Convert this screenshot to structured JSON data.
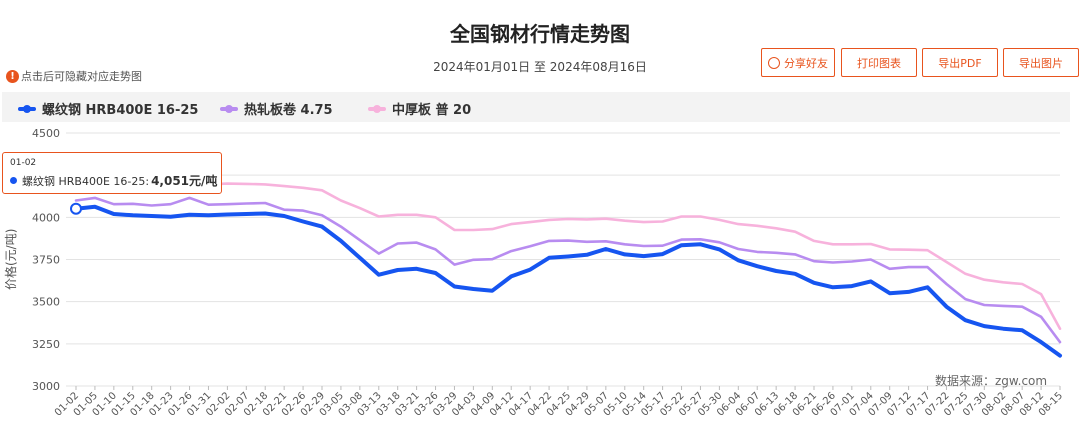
{
  "header": {
    "title": "全国钢材行情走势图",
    "date_range": "2024年01月01日 至 2024年08月16日",
    "hint": "点击后可隐藏对应走势图"
  },
  "toolbar": {
    "share_label": "分享好友",
    "print_label": "打印图表",
    "pdf_label": "导出PDF",
    "image_label": "导出图片"
  },
  "source_note": "数据来源：zgw.com",
  "tooltip": {
    "date": "01-02",
    "series_label": "螺纹钢 HRB400E 16-25:",
    "value_text": "4,051元/吨"
  },
  "colors": {
    "accent": "#e8541e",
    "series_rebar": "#1655f0",
    "series_hotrolled": "#b88cf0",
    "series_plate": "#f7b2dc",
    "grid": "#e3e3e3"
  },
  "chart_data": {
    "type": "line",
    "title": "全国钢材行情走势图",
    "ylabel": "价格(元/吨)",
    "xlabel": "",
    "ylim": [
      3000,
      4500
    ],
    "yticks": [
      3000,
      3250,
      3500,
      3750,
      4000,
      4250,
      4500
    ],
    "grid": true,
    "legend_position": "top-left",
    "x_tick_labels": [
      "01-02",
      "01-05",
      "01-10",
      "01-15",
      "01-18",
      "01-23",
      "01-26",
      "01-31",
      "02-02",
      "02-07",
      "02-18",
      "02-21",
      "02-26",
      "02-29",
      "03-05",
      "03-08",
      "03-13",
      "03-18",
      "03-21",
      "03-26",
      "03-29",
      "04-03",
      "04-09",
      "04-12",
      "04-17",
      "04-22",
      "04-25",
      "04-29",
      "05-07",
      "05-10",
      "05-14",
      "05-17",
      "05-22",
      "05-27",
      "05-30",
      "06-04",
      "06-07",
      "06-13",
      "06-18",
      "06-21",
      "06-26",
      "07-01",
      "07-04",
      "07-09",
      "07-12",
      "07-17",
      "07-22",
      "07-25",
      "07-30",
      "08-02",
      "08-07",
      "08-12",
      "08-15"
    ],
    "series": [
      {
        "name": "螺纹钢 HRB400E 16-25",
        "values": [
          4051,
          4063,
          4020,
          4012,
          4008,
          4003,
          4015,
          4012,
          4017,
          4020,
          4023,
          4008,
          3975,
          3945,
          3860,
          3760,
          3660,
          3688,
          3695,
          3670,
          3590,
          3575,
          3565,
          3650,
          3690,
          3760,
          3768,
          3778,
          3812,
          3780,
          3770,
          3782,
          3835,
          3840,
          3810,
          3745,
          3710,
          3682,
          3665,
          3612,
          3585,
          3592,
          3620,
          3550,
          3558,
          3585,
          3470,
          3390,
          3355,
          3340,
          3330,
          3260,
          3180
        ]
      },
      {
        "name": "热轧板卷 4.75",
        "values": [
          4100,
          4115,
          4078,
          4080,
          4070,
          4078,
          4115,
          4075,
          4078,
          4082,
          4085,
          4045,
          4040,
          4012,
          3945,
          3865,
          3785,
          3845,
          3850,
          3810,
          3720,
          3748,
          3752,
          3800,
          3828,
          3860,
          3862,
          3855,
          3858,
          3840,
          3830,
          3832,
          3868,
          3870,
          3852,
          3812,
          3795,
          3790,
          3780,
          3740,
          3732,
          3738,
          3750,
          3695,
          3705,
          3705,
          3605,
          3515,
          3480,
          3475,
          3470,
          3410,
          3260
        ]
      },
      {
        "name": "中厚板 普 20",
        "values": [
          4210,
          4205,
          4195,
          4192,
          4190,
          4192,
          4200,
          4195,
          4200,
          4198,
          4195,
          4185,
          4175,
          4160,
          4100,
          4055,
          4005,
          4015,
          4015,
          4000,
          3925,
          3925,
          3930,
          3960,
          3972,
          3985,
          3990,
          3988,
          3992,
          3980,
          3972,
          3975,
          4005,
          4005,
          3985,
          3960,
          3950,
          3935,
          3915,
          3860,
          3840,
          3840,
          3842,
          3810,
          3808,
          3805,
          3735,
          3665,
          3630,
          3615,
          3605,
          3545,
          3340
        ]
      }
    ]
  }
}
